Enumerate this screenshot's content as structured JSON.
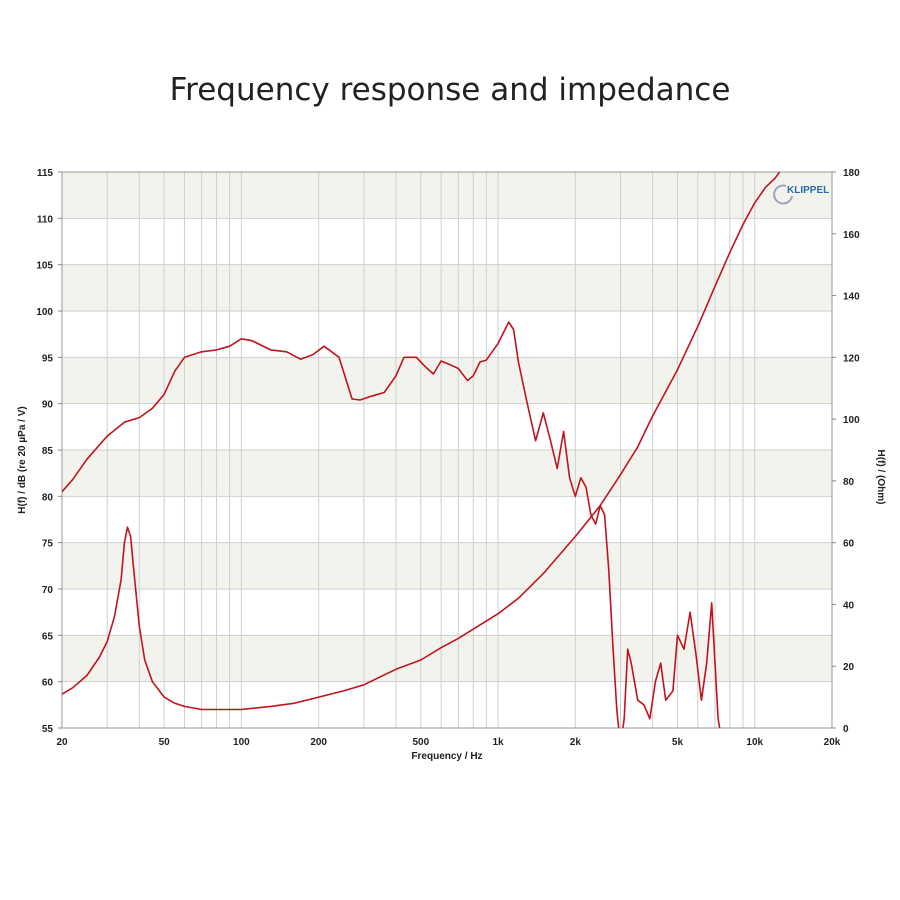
{
  "title": "Frequency response and impedance",
  "logo_text": "KLIPPEL",
  "colors": {
    "curve": "#c0141c",
    "grid": "#cfcfcf",
    "band": "#f3f3ee",
    "logo": "#2a6cab"
  },
  "chart_data": {
    "type": "line",
    "xscale": "log",
    "xlim": [
      20,
      20000
    ],
    "xticks": [
      20,
      50,
      100,
      200,
      500,
      1000,
      2000,
      5000,
      10000,
      20000
    ],
    "xtick_labels": [
      "20",
      "50",
      "100",
      "200",
      "500",
      "1k",
      "2k",
      "5k",
      "10k",
      "20k"
    ],
    "xlabel": "Frequency / Hz",
    "ylabel_left": "H(f) / dB (re 20 µPa / V)",
    "ylim_left": [
      55,
      115
    ],
    "yticks_left": [
      55,
      60,
      65,
      70,
      75,
      80,
      85,
      90,
      95,
      100,
      105,
      110,
      115
    ],
    "ylabel_right": "H(f) / (Ohm)",
    "ylim_right": [
      0,
      180
    ],
    "yticks_right": [
      0,
      20,
      40,
      60,
      80,
      100,
      120,
      140,
      160,
      180
    ],
    "series": [
      {
        "name": "Frequency response",
        "axis": "left",
        "unit": "dB",
        "x": [
          20,
          22,
          25,
          30,
          35,
          40,
          45,
          50,
          55,
          60,
          70,
          80,
          90,
          100,
          110,
          130,
          150,
          170,
          190,
          210,
          240,
          270,
          290,
          320,
          360,
          400,
          430,
          480,
          520,
          560,
          600,
          650,
          700,
          760,
          800,
          850,
          900,
          1000,
          1100,
          1150,
          1200,
          1300,
          1400,
          1500,
          1600,
          1700,
          1800,
          1900,
          2000,
          2100,
          2200,
          2300,
          2400,
          2500,
          2600,
          2700,
          2800,
          2900,
          3000,
          3100,
          3200,
          3300,
          3500,
          3700,
          3900,
          4100,
          4300,
          4500,
          4800,
          5000,
          5300,
          5600,
          5900,
          6200,
          6500,
          6800,
          7000,
          7200,
          7500
        ],
        "values": [
          80.5,
          81.8,
          84.0,
          86.5,
          88.0,
          88.5,
          89.5,
          91.0,
          93.5,
          95.0,
          95.6,
          95.8,
          96.2,
          97.0,
          96.8,
          95.8,
          95.6,
          94.8,
          95.3,
          96.2,
          95.0,
          90.5,
          90.4,
          90.8,
          91.2,
          93.0,
          95.0,
          95.0,
          94.0,
          93.2,
          94.6,
          94.2,
          93.8,
          92.5,
          93.0,
          94.5,
          94.7,
          96.5,
          98.8,
          98.0,
          94.5,
          90.0,
          86.0,
          89.0,
          86.0,
          83.0,
          87.0,
          82.0,
          80.0,
          82.0,
          81.0,
          78.0,
          77.0,
          79.0,
          78.0,
          72.0,
          64.0,
          57.0,
          53.0,
          56.0,
          63.5,
          62.0,
          58.0,
          57.5,
          56.0,
          60.0,
          62.0,
          58.0,
          59.0,
          65.0,
          63.5,
          67.5,
          63.0,
          58.0,
          62.0,
          68.5,
          62.0,
          56.0,
          53.0
        ]
      },
      {
        "name": "Impedance",
        "axis": "right",
        "unit": "Ohm",
        "x": [
          20,
          22,
          25,
          28,
          30,
          32,
          34,
          35,
          36,
          37,
          38,
          40,
          42,
          45,
          50,
          55,
          60,
          70,
          80,
          100,
          130,
          160,
          200,
          250,
          300,
          400,
          500,
          600,
          700,
          800,
          1000,
          1200,
          1500,
          2000,
          2500,
          3000,
          3500,
          4000,
          5000,
          6000,
          7000,
          8000,
          9000,
          10000,
          11000,
          12000,
          12500
        ],
        "values": [
          11,
          13,
          17,
          23,
          28,
          36,
          48,
          60,
          65,
          62,
          52,
          33,
          22,
          15,
          10,
          8,
          7,
          6,
          6,
          6,
          7,
          8,
          10,
          12,
          14,
          19,
          22,
          26,
          29,
          32,
          37,
          42,
          50,
          62,
          72,
          82,
          91,
          101,
          116,
          130,
          143,
          154,
          163,
          170,
          175,
          178,
          180
        ]
      }
    ]
  }
}
